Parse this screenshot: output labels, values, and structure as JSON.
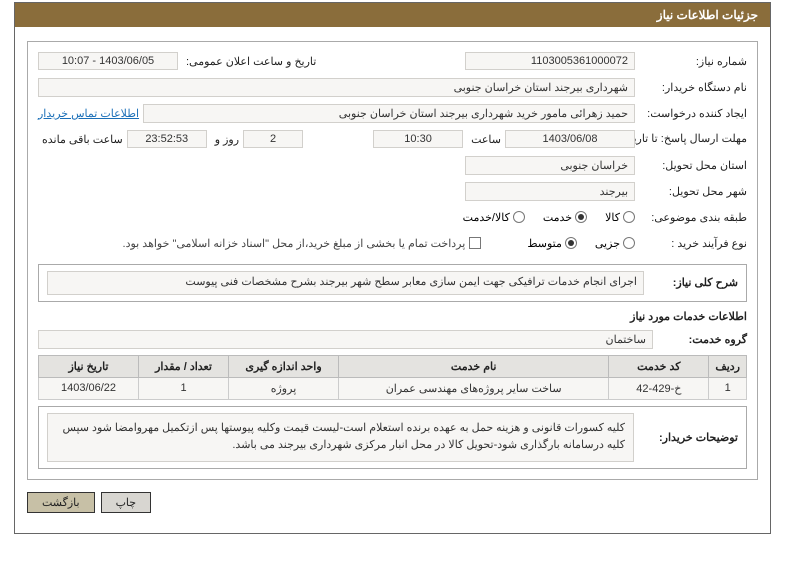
{
  "panel": {
    "title": "جزئیات اطلاعات نیاز"
  },
  "colors": {
    "title_bg": "#8a6d3b",
    "title_fg": "#ffffff",
    "panel_border": "#666666",
    "box_border": "#aaaaaa",
    "field_bg": "#f7f6f4",
    "field_border": "#d2d0cc",
    "link": "#1a6fb8",
    "th_bg": "#e4e3e0",
    "btn_bg": "#d8d6d1",
    "btn_primary_bg": "#c7c0a6",
    "watermark": "#e8e8e8",
    "shield_outline": "#cfcfcf",
    "shield_accent": "#d9534f"
  },
  "labels": {
    "need_no": "شماره نیاز:",
    "announce": "تاریخ و ساعت اعلان عمومی:",
    "buyer_org": "نام دستگاه خریدار:",
    "requester": "ایجاد کننده درخواست:",
    "contact": "اطلاعات تماس خریدار",
    "reply_deadline": "مهلت ارسال پاسخ: تا تاریخ:",
    "hour": "ساعت",
    "days_and": "روز و",
    "time_left": "ساعت باقی مانده",
    "delivery_province": "استان محل تحویل:",
    "delivery_city": "شهر محل تحویل:",
    "subject_class": "طبقه بندی موضوعی:",
    "purchase_type": "نوع فرآیند خرید :",
    "need_desc": "شرح کلی نیاز:",
    "services_info": "اطلاعات خدمات مورد نیاز",
    "service_group": "گروه خدمت:",
    "buyer_notes": "توضیحات خریدار:"
  },
  "values": {
    "need_no": "1103005361000072",
    "announce": "1403/06/05 - 10:07",
    "buyer_org": "شهرداری بیرجند استان خراسان جنوبی",
    "requester": "حمید زهرائی مامور خرید شهرداری بیرجند استان خراسان جنوبی",
    "deadline_date": "1403/06/08",
    "deadline_time": "10:30",
    "days_left": "2",
    "time_left": "23:52:53",
    "province": "خراسان جنوبی",
    "city": "بیرجند",
    "need_desc": "اجرای انجام خدمات ترافیکی جهت ایمن سازی معابر سطح شهر بیرجند بشرح مشخصات فنی پیوست",
    "service_group": "ساختمان",
    "buyer_notes": "کلیه کسورات قانونی و هزینه حمل به عهده برنده استعلام است-لیست قیمت وکلیه پیوستها پس ازتکمیل مهروامضا شود سپس کلیه درسامانه بارگذاری شود-تحویل کالا در محل انبار مرکزی شهرداری بیرجند می باشد."
  },
  "subject_class": {
    "options": [
      "کالا",
      "خدمت",
      "کالا/خدمت"
    ],
    "selected": 1
  },
  "purchase_type": {
    "options": [
      "جزیی",
      "متوسط"
    ],
    "selected": 1,
    "note": "پرداخت تمام یا بخشی از مبلغ خرید،از محل \"اسناد خزانه اسلامی\" خواهد بود."
  },
  "table": {
    "columns": [
      "ردیف",
      "کد خدمت",
      "نام خدمت",
      "واحد اندازه گیری",
      "تعداد / مقدار",
      "تاریخ نیاز"
    ],
    "col_widths": [
      "36px",
      "100px",
      "auto",
      "110px",
      "90px",
      "100px"
    ],
    "rows": [
      [
        "1",
        "خ-429-42",
        "ساخت سایر پروژه‌های مهندسی عمران",
        "پروژه",
        "1",
        "1403/06/22"
      ]
    ]
  },
  "buttons": {
    "print": "چاپ",
    "back": "بازگشت"
  },
  "watermark": "AriaTender.net"
}
